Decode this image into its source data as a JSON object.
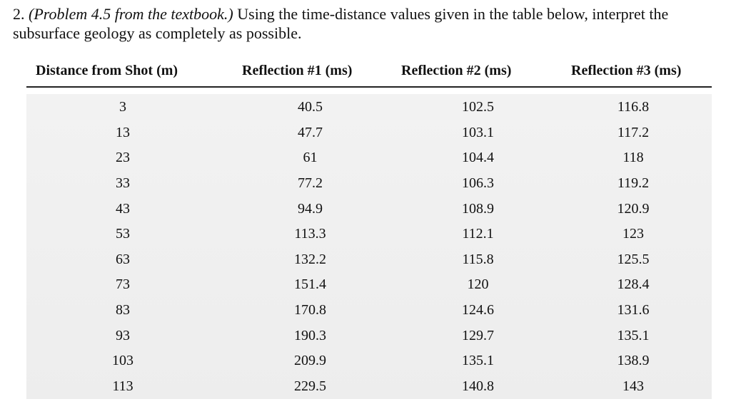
{
  "question": {
    "number": "2.",
    "reference": "(Problem 4.5 from the textbook.)",
    "text": "Using the time-distance values given in the table below, interpret the subsurface geology as completely as possible."
  },
  "table": {
    "headers": [
      "Distance from Shot (m)",
      "Reflection #1 (ms)",
      "Reflection #2 (ms)",
      "Reflection #3 (ms)"
    ],
    "rows": [
      [
        "3",
        "40.5",
        "102.5",
        "116.8"
      ],
      [
        "13",
        "47.7",
        "103.1",
        "117.2"
      ],
      [
        "23",
        "61",
        "104.4",
        "118"
      ],
      [
        "33",
        "77.2",
        "106.3",
        "119.2"
      ],
      [
        "43",
        "94.9",
        "108.9",
        "120.9"
      ],
      [
        "53",
        "113.3",
        "112.1",
        "123"
      ],
      [
        "63",
        "132.2",
        "115.8",
        "125.5"
      ],
      [
        "73",
        "151.4",
        "120",
        "128.4"
      ],
      [
        "83",
        "170.8",
        "124.6",
        "131.6"
      ],
      [
        "93",
        "190.3",
        "129.7",
        "135.1"
      ],
      [
        "103",
        "209.9",
        "135.1",
        "138.9"
      ],
      [
        "113",
        "229.5",
        "140.8",
        "143"
      ]
    ]
  }
}
